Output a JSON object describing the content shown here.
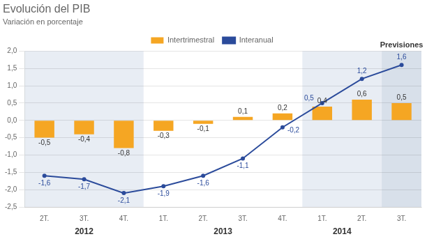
{
  "chart_data": {
    "type": "bar",
    "title": "Evolución del PIB",
    "subtitle": "Variación en porcentaje",
    "categories": [
      "2T.",
      "3T.",
      "4T.",
      "1T.",
      "2T.",
      "3T.",
      "4T.",
      "1T.",
      "2T.",
      "3T."
    ],
    "series": [
      {
        "name": "Intertrimestral",
        "type": "bar",
        "color": "#F5A623",
        "values": [
          -0.5,
          -0.4,
          -0.8,
          -0.3,
          -0.1,
          0.1,
          0.2,
          0.4,
          0.6,
          0.5
        ],
        "value_labels": [
          "-0,5",
          "-0,4",
          "-0,8",
          "-0,3",
          "-0,1",
          "0,1",
          "0,2",
          "0,4",
          "0,6",
          "0,5"
        ]
      },
      {
        "name": "Interanual",
        "type": "line",
        "color": "#2B4B9B",
        "marker": "circle",
        "values": [
          -1.6,
          -1.7,
          -2.1,
          -1.9,
          -1.6,
          -1.1,
          -0.2,
          0.5,
          1.2,
          1.6
        ],
        "value_labels": [
          "-1,6",
          "-1,7",
          "-2,1",
          "-1,9",
          "-1,6",
          "-1,1",
          "-0,2",
          "0,5",
          "1,2",
          "1,6"
        ]
      }
    ],
    "ylim": [
      -2.5,
      2.0
    ],
    "yticks": [
      {
        "value": -2.5,
        "label": "-2,5"
      },
      {
        "value": -2.0,
        "label": "-2,0"
      },
      {
        "value": -1.5,
        "label": "-1,5"
      },
      {
        "value": -1.0,
        "label": "-1,0"
      },
      {
        "value": -0.5,
        "label": "-0,5"
      },
      {
        "value": 0.0,
        "label": "0,0"
      },
      {
        "value": 0.5,
        "label": "0,5"
      },
      {
        "value": 1.0,
        "label": "1,0"
      },
      {
        "value": 1.5,
        "label": "1,5"
      },
      {
        "value": 2.0,
        "label": "2,0"
      }
    ],
    "grid": true,
    "legend": "top",
    "data_labels": true,
    "annotations": [
      {
        "text": "2012",
        "from": 0,
        "to": 2,
        "color": "#E8EDF4",
        "position": "bottom"
      },
      {
        "text": "2013",
        "from": 3,
        "to": 6,
        "color": "#FFFFFF",
        "position": "bottom"
      },
      {
        "text": "2014",
        "from": 7,
        "to": 8,
        "color": "#E8EDF4",
        "position": "bottom"
      },
      {
        "text": "Previsiones",
        "from": 9,
        "to": 9,
        "color": "#D8E0EA",
        "position": "top"
      }
    ]
  }
}
